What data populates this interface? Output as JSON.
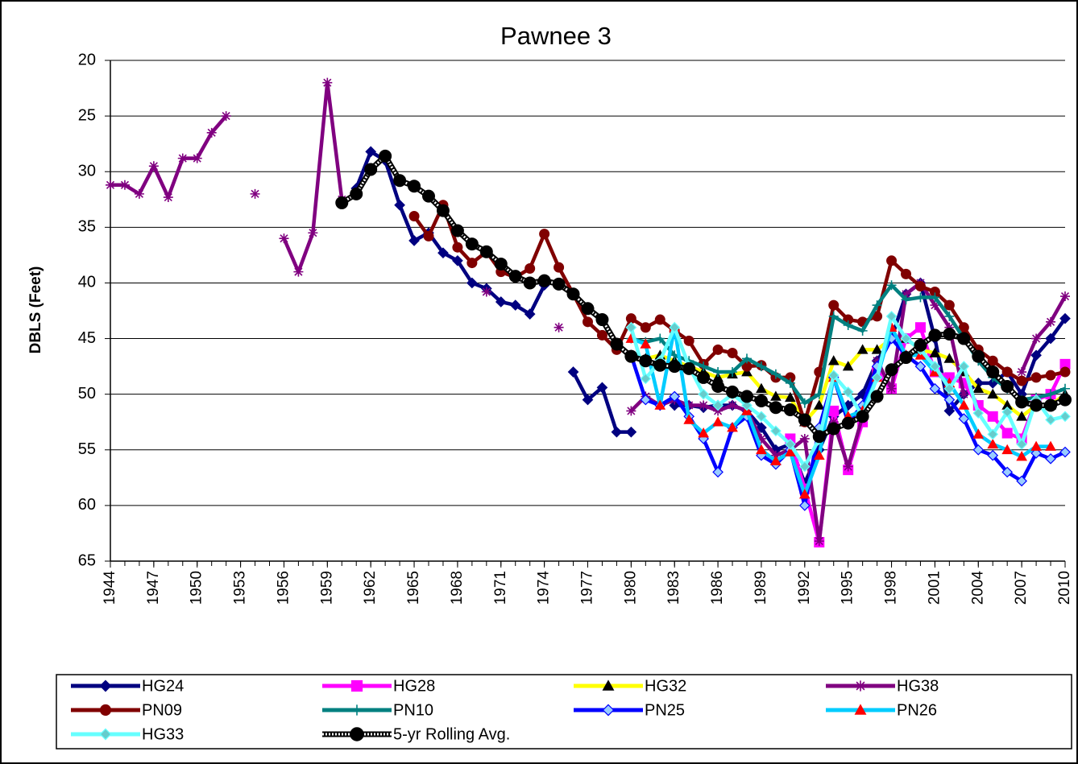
{
  "chart_data": {
    "type": "line",
    "title": "Pawnee 3",
    "y_label": "DBLS (Feet)",
    "y_reversed": true,
    "grid": true,
    "legend": "bottom",
    "x": [
      1944,
      1945,
      1946,
      1947,
      1948,
      1949,
      1950,
      1951,
      1952,
      1953,
      1954,
      1955,
      1956,
      1957,
      1958,
      1959,
      1960,
      1961,
      1962,
      1963,
      1964,
      1965,
      1966,
      1967,
      1968,
      1969,
      1970,
      1971,
      1972,
      1973,
      1974,
      1975,
      1976,
      1977,
      1978,
      1979,
      1980,
      1981,
      1982,
      1983,
      1984,
      1985,
      1986,
      1987,
      1988,
      1989,
      1990,
      1991,
      1992,
      1993,
      1994,
      1995,
      1996,
      1997,
      1998,
      1999,
      2000,
      2001,
      2002,
      2003,
      2004,
      2005,
      2006,
      2007,
      2008,
      2009,
      2010
    ],
    "xlim": [
      1944,
      2010
    ],
    "xticks": [
      1944,
      1947,
      1950,
      1953,
      1956,
      1959,
      1962,
      1965,
      1968,
      1971,
      1974,
      1977,
      1980,
      1983,
      1986,
      1989,
      1992,
      1995,
      1998,
      2001,
      2004,
      2007,
      2010
    ],
    "ylim": [
      20,
      65
    ],
    "yticks": [
      20,
      25,
      30,
      35,
      40,
      45,
      50,
      55,
      60,
      65
    ],
    "series": [
      {
        "name": "HG24",
        "color": "#000080",
        "marker": "diamond",
        "marker_color": "#000080",
        "values": [
          null,
          null,
          null,
          null,
          null,
          null,
          null,
          null,
          null,
          null,
          null,
          null,
          null,
          null,
          null,
          null,
          null,
          31.5,
          28.2,
          29,
          33,
          36.2,
          35.5,
          37.3,
          38,
          40,
          40.5,
          41.7,
          42,
          42.8,
          40.2,
          null,
          48,
          50.5,
          49.4,
          53.4,
          53.4,
          null,
          null,
          51,
          51,
          51.2,
          51,
          51,
          51.5,
          53,
          55,
          54.5,
          58,
          55,
          52,
          51,
          50,
          47,
          45,
          41,
          40,
          45,
          51.5,
          50,
          49,
          49,
          48,
          50,
          46.5,
          45,
          43.2
        ]
      },
      {
        "name": "HG28",
        "color": "#ff00ff",
        "marker": "square",
        "marker_color": "#ff00ff",
        "values": [
          null,
          null,
          null,
          null,
          null,
          null,
          null,
          null,
          null,
          null,
          null,
          null,
          null,
          null,
          null,
          null,
          null,
          null,
          null,
          null,
          null,
          null,
          null,
          null,
          null,
          null,
          null,
          null,
          null,
          null,
          null,
          null,
          null,
          null,
          null,
          null,
          null,
          null,
          null,
          null,
          null,
          null,
          null,
          null,
          null,
          null,
          null,
          54,
          58.5,
          63.3,
          51.5,
          56.8,
          52.5,
          48,
          49.5,
          45,
          44,
          48,
          48.5,
          49,
          51,
          52,
          53.5,
          54,
          50.5,
          50,
          47.3
        ]
      },
      {
        "name": "HG32",
        "color": "#ffff00",
        "marker": "triangle",
        "marker_color": "#000000",
        "values": [
          null,
          null,
          null,
          null,
          null,
          null,
          null,
          null,
          null,
          null,
          null,
          null,
          null,
          null,
          null,
          null,
          null,
          null,
          null,
          null,
          null,
          null,
          null,
          null,
          null,
          null,
          null,
          null,
          null,
          null,
          null,
          null,
          null,
          null,
          null,
          null,
          46.5,
          46.8,
          46.5,
          47,
          47.5,
          48,
          48.5,
          48.2,
          48,
          49.5,
          50.2,
          50.3,
          52.5,
          51,
          47,
          47.5,
          46,
          46,
          45,
          45,
          46,
          46.3,
          46.8,
          48,
          49.5,
          50,
          51,
          52,
          51,
          51,
          50
        ]
      },
      {
        "name": "HG38",
        "color": "#800080",
        "marker": "star",
        "marker_color": "#800080",
        "values": [
          31.2,
          31.2,
          32,
          29.5,
          32.3,
          28.8,
          28.8,
          26.5,
          25,
          null,
          32,
          null,
          36,
          39,
          35.5,
          22,
          32.5,
          null,
          null,
          null,
          null,
          null,
          null,
          null,
          null,
          null,
          40.8,
          null,
          null,
          null,
          null,
          44,
          null,
          null,
          null,
          null,
          51.5,
          50.2,
          51,
          50.5,
          51,
          51,
          51.5,
          51,
          51.5,
          54,
          55.5,
          55,
          54,
          63.2,
          52.5,
          56.5,
          52,
          47,
          49.5,
          41,
          40,
          42,
          44,
          50,
          null,
          null,
          null,
          48,
          45,
          43.5,
          41.2
        ]
      },
      {
        "name": "PN09",
        "color": "#800000",
        "marker": "circle",
        "marker_color": "#800000",
        "values": [
          null,
          null,
          null,
          null,
          null,
          null,
          null,
          null,
          null,
          null,
          null,
          null,
          null,
          null,
          null,
          null,
          null,
          null,
          null,
          null,
          null,
          34,
          35.8,
          33,
          36.8,
          38.2,
          37.2,
          39,
          39.5,
          38.7,
          35.6,
          38.6,
          41,
          43.5,
          44.7,
          46,
          43.2,
          44,
          43.3,
          44.3,
          45.2,
          47.3,
          46,
          46.3,
          47.5,
          47.4,
          48.5,
          48.5,
          52.5,
          48,
          42,
          43.3,
          43.5,
          43,
          38,
          39.2,
          40.3,
          40.8,
          42,
          44,
          46,
          47,
          48,
          48.8,
          48.5,
          48.3,
          48
        ]
      },
      {
        "name": "PN10",
        "color": "#008080",
        "marker": "plus",
        "marker_color": "#008080",
        "values": [
          null,
          null,
          null,
          null,
          null,
          null,
          null,
          null,
          null,
          null,
          null,
          null,
          null,
          null,
          null,
          null,
          null,
          null,
          null,
          null,
          null,
          null,
          null,
          null,
          null,
          null,
          null,
          null,
          null,
          null,
          null,
          null,
          null,
          null,
          null,
          null,
          45,
          45.3,
          45,
          46.5,
          47,
          47.5,
          48,
          48,
          46.8,
          47.5,
          48.2,
          49,
          50.8,
          50,
          43,
          43.8,
          44.3,
          42,
          40.2,
          41.5,
          41.3,
          41.3,
          43,
          45,
          47,
          48.5,
          49.5,
          50.5,
          50.3,
          50,
          49.5
        ]
      },
      {
        "name": "PN25",
        "color": "#0000ff",
        "marker": "diamond",
        "marker_color": "#99ccff",
        "values": [
          null,
          null,
          null,
          null,
          null,
          null,
          null,
          null,
          null,
          null,
          null,
          null,
          null,
          null,
          null,
          null,
          null,
          null,
          null,
          null,
          null,
          null,
          null,
          null,
          null,
          null,
          null,
          null,
          null,
          null,
          null,
          null,
          null,
          null,
          null,
          null,
          46.5,
          50.5,
          51,
          50.2,
          52,
          54,
          57,
          53,
          52,
          55.5,
          56.3,
          55,
          60,
          53,
          48.5,
          52.5,
          51,
          47.5,
          45,
          46.5,
          47.5,
          49.5,
          50.5,
          52.2,
          55,
          55.5,
          57,
          57.8,
          55.3,
          55.8,
          55.2
        ]
      },
      {
        "name": "PN26",
        "color": "#00ccff",
        "marker": "triangle",
        "marker_color": "#ff0000",
        "values": [
          null,
          null,
          null,
          null,
          null,
          null,
          null,
          null,
          null,
          null,
          null,
          null,
          null,
          null,
          null,
          null,
          null,
          null,
          null,
          null,
          null,
          null,
          null,
          null,
          null,
          null,
          null,
          null,
          null,
          null,
          null,
          null,
          null,
          null,
          null,
          null,
          45,
          45.5,
          51,
          44,
          52.3,
          53.5,
          52.5,
          53,
          51.5,
          55,
          56,
          55.2,
          59,
          55.5,
          48.5,
          52,
          51.5,
          48.5,
          44,
          46.5,
          46.5,
          48,
          49,
          51,
          53.6,
          54.5,
          55,
          55.6,
          54.7,
          54.7,
          null
        ]
      },
      {
        "name": "HG33",
        "color": "#66ffff",
        "marker": "diamond",
        "marker_color": "#66cccc",
        "values": [
          null,
          null,
          null,
          null,
          null,
          null,
          null,
          null,
          null,
          null,
          null,
          null,
          null,
          null,
          null,
          null,
          null,
          null,
          null,
          null,
          null,
          null,
          null,
          null,
          null,
          null,
          null,
          null,
          null,
          null,
          null,
          null,
          null,
          null,
          null,
          null,
          44,
          48.6,
          47,
          44,
          47.5,
          50,
          51,
          50,
          51,
          52,
          53.3,
          54.5,
          56.5,
          54,
          48.3,
          49.8,
          52,
          48.5,
          43,
          45,
          46,
          47.5,
          49.5,
          47.5,
          51.7,
          53.6,
          51.6,
          54.5,
          50.5,
          52.3,
          52
        ]
      },
      {
        "name": "5-yr Rolling  Avg.",
        "color": "#000000",
        "pattern": "dotted",
        "marker": "circle",
        "marker_color": "#000000",
        "values": [
          null,
          null,
          null,
          null,
          null,
          null,
          null,
          null,
          null,
          null,
          null,
          null,
          null,
          null,
          null,
          null,
          32.8,
          32,
          29.8,
          28.6,
          30.8,
          31.3,
          32.2,
          33.5,
          35.3,
          36.5,
          37.2,
          38.3,
          39.4,
          40,
          39.8,
          40.1,
          41,
          42.3,
          43.3,
          45.5,
          46.6,
          47,
          47.4,
          47.5,
          47.7,
          48.5,
          49.3,
          49.8,
          50.2,
          50.6,
          51.2,
          51.4,
          52.3,
          53.8,
          53.1,
          52.6,
          52,
          50.2,
          47.8,
          46.7,
          45.6,
          44.7,
          44.6,
          45,
          46.6,
          48,
          49.3,
          50.7,
          51,
          51,
          50.5
        ]
      }
    ]
  }
}
